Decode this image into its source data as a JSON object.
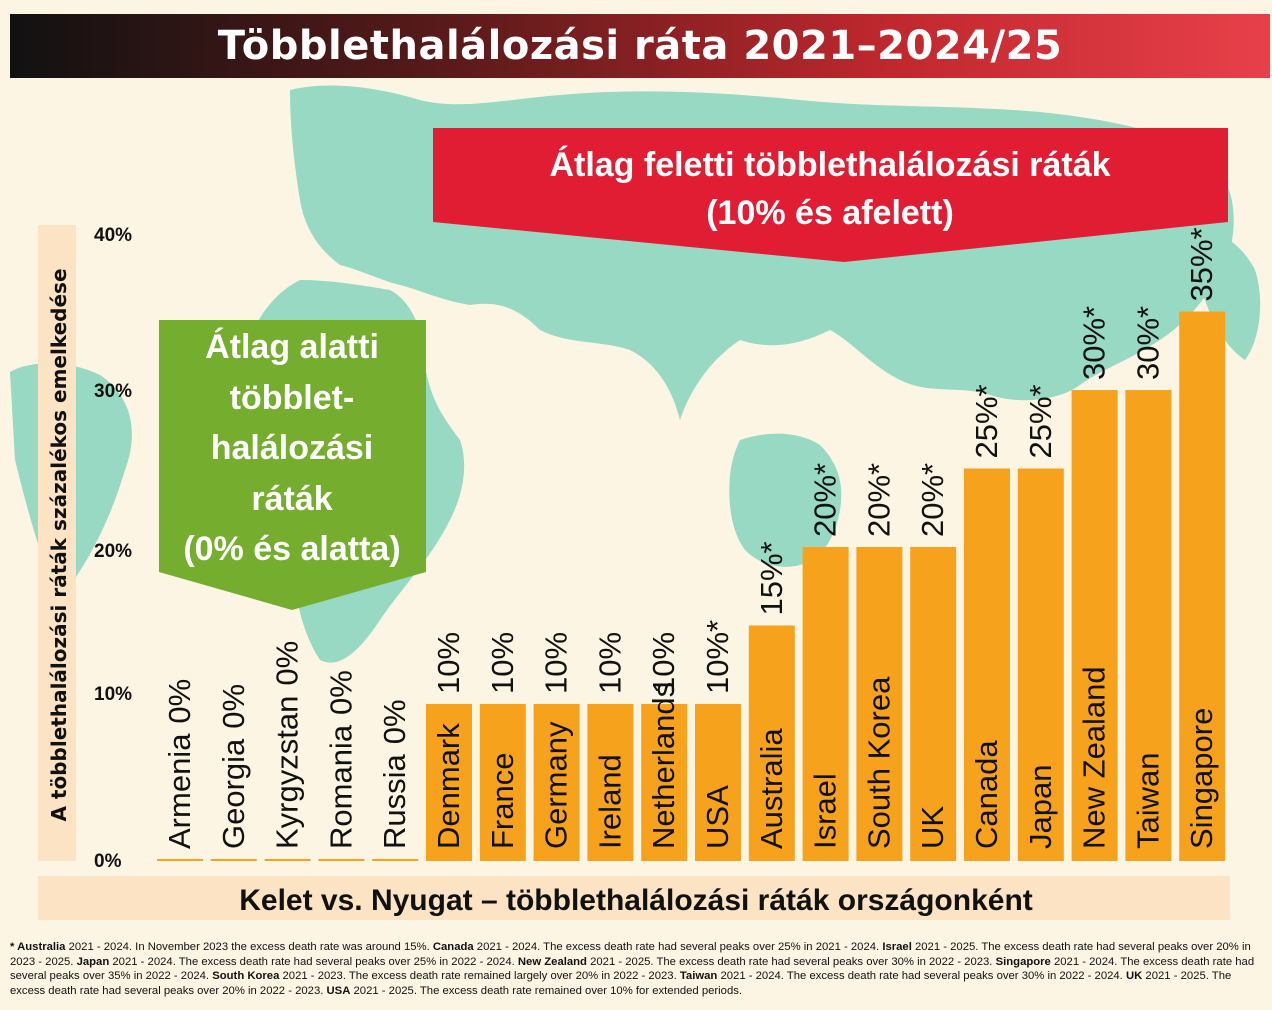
{
  "title": "Többlethalálozási ráta 2021–2024/25",
  "above_box": {
    "line1": "Átlag feletti többlethalálozási ráták",
    "line2": "(10% és afelett)"
  },
  "below_box": {
    "lines": [
      "Átlag alatti",
      "többlet-",
      "halálozási",
      "ráták",
      "(0% és alatta)"
    ]
  },
  "colors": {
    "bar": "#f7a21c",
    "map": "#97d9c3",
    "red_banner": "#e11d34",
    "green_banner": "#75ad2e",
    "background": "#fdf5e3"
  },
  "footnote": [
    {
      "bold": "* Australia",
      "text": " 2021 - 2024. In November 2023 the excess death rate was around 15%. "
    },
    {
      "bold": "Canada",
      "text": " 2021 - 2024. The excess death rate had several peaks over 25% in 2021 - 2024. "
    },
    {
      "bold": "Israel",
      "text": " 2021 - 2025. The excess death rate had several peaks over 20% in 2023 - 2025. "
    },
    {
      "bold": "Japan",
      "text": " 2021 - 2024. The excess death rate had several peaks over 25% in 2022 - 2024. "
    },
    {
      "bold": "New Zealand",
      "text": " 2021 - 2025. The excess death rate had several peaks over 30% in 2022 - 2023. "
    },
    {
      "bold": "Singapore",
      "text": " 2021 - 2024. The excess death rate had several peaks over 35% in 2022 - 2024. "
    },
    {
      "bold": "South Korea",
      "text": " 2021 - 2023. The excess death rate remained largely over 20% in 2022 - 2023. "
    },
    {
      "bold": "Taiwan",
      "text": " 2021 - 2024. The excess death rate had several peaks over 30% in 2022 - 2024. "
    },
    {
      "bold": "UK",
      "text": " 2021 - 2025. The excess death rate had several peaks over 20% in 2022 - 2023. "
    },
    {
      "bold": "USA",
      "text": " 2021 - 2025. The excess death rate remained over 10% for extended periods."
    }
  ],
  "chart_data": {
    "type": "bar",
    "title": "Többlethalálozási ráta 2021–2024/25",
    "xlabel": "Kelet vs. Nyugat – többlethalálozási ráták országonként",
    "ylabel": "A többlethalálozási ráták százalékos emelkedése",
    "ylim": [
      0,
      40
    ],
    "yticks": [
      "0%",
      "10%",
      "20%",
      "30%",
      "40%"
    ],
    "grid": false,
    "categories": [
      "Armenia",
      "Georgia",
      "Kyrgyzstan",
      "Romania",
      "Russia",
      "Denmark",
      "France",
      "Germany",
      "Ireland",
      "Netherlands",
      "USA",
      "Australia",
      "Israel",
      "South Korea",
      "UK",
      "Canada",
      "Japan",
      "New Zealand",
      "Taiwan",
      "Singapore"
    ],
    "values": [
      0,
      0,
      0,
      0,
      0,
      10,
      10,
      10,
      10,
      10,
      10,
      15,
      20,
      20,
      20,
      25,
      25,
      30,
      30,
      35
    ],
    "data_labels": [
      "0%",
      "0%",
      "0%",
      "0%",
      "0%",
      "10%",
      "10%",
      "10%",
      "10%",
      "10%",
      "10%*",
      "15%*",
      "20%*",
      "20%*",
      "20%*",
      "25%*",
      "25%*",
      "30%*",
      "30%*",
      "35%*"
    ]
  }
}
